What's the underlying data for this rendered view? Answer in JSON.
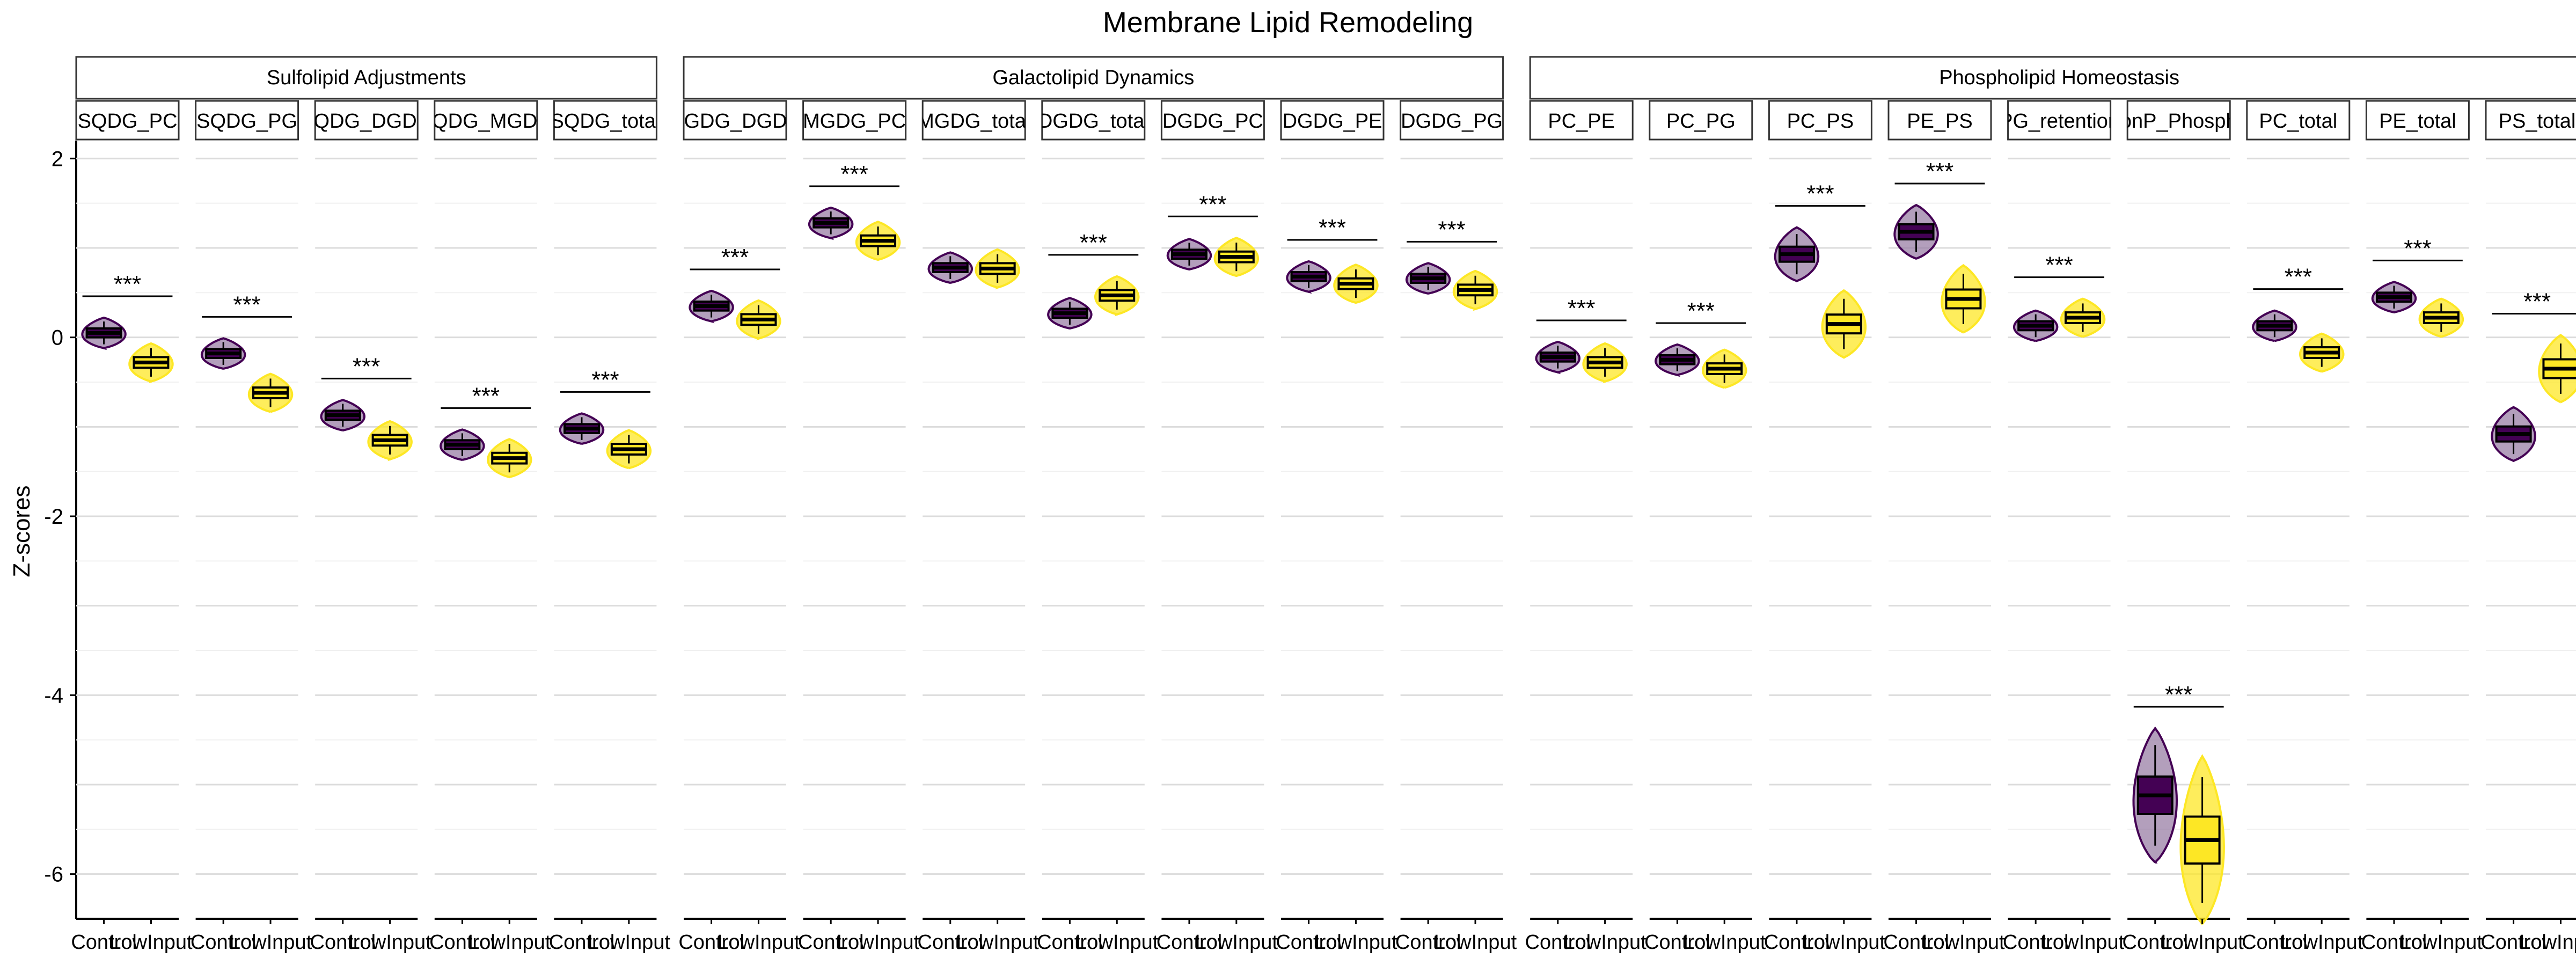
{
  "chart_data": {
    "type": "violin",
    "title": "Membrane Lipid Remodeling",
    "ylabel": "Z-scores",
    "xlabel": "",
    "ylim": [
      -6.5,
      2.2
    ],
    "yticks": [
      2,
      0,
      -2,
      -4,
      -6
    ],
    "ytick_labels": [
      "2",
      "0",
      "-2",
      "-4",
      "-6"
    ],
    "grid": true,
    "colors": {
      "Control": "#440154",
      "LowInput": "#FDE725"
    },
    "groups": [
      "Control",
      "LowInput"
    ],
    "group_tick_labels": [
      "Control",
      "LowInput"
    ],
    "facet_groups": [
      {
        "title": "Sulfolipid Adjustments",
        "start": 0,
        "count": 5
      },
      {
        "title": "Galactolipid Dynamics",
        "start": 5,
        "count": 7
      },
      {
        "title": "Phospholipid Homeostasis",
        "start": 12,
        "count": 9
      }
    ],
    "panels": [
      {
        "label": "SQDG_PC",
        "control_median": 0.05,
        "lowinput_median": -0.28,
        "significance": "***"
      },
      {
        "label": "SQDG_PG",
        "control_median": -0.18,
        "lowinput_median": -0.62,
        "significance": "***"
      },
      {
        "label": "SQDG_DGDG",
        "control_median": -0.87,
        "lowinput_median": -1.15,
        "significance": "***"
      },
      {
        "label": "SQDG_MGDG",
        "control_median": -1.2,
        "lowinput_median": -1.35,
        "significance": "***"
      },
      {
        "label": "SQDG_total",
        "control_median": -1.02,
        "lowinput_median": -1.25,
        "significance": "***"
      },
      {
        "label": "MGDG_DGDG",
        "control_median": 0.35,
        "lowinput_median": 0.2,
        "significance": "***"
      },
      {
        "label": "MGDG_PC",
        "control_median": 1.28,
        "lowinput_median": 1.08,
        "significance": "***"
      },
      {
        "label": "MGDG_total",
        "control_median": 0.78,
        "lowinput_median": 0.77,
        "significance": ""
      },
      {
        "label": "DGDG_total",
        "control_median": 0.27,
        "lowinput_median": 0.47,
        "significance": "***"
      },
      {
        "label": "DGDG_PC",
        "control_median": 0.93,
        "lowinput_median": 0.9,
        "significance": "***"
      },
      {
        "label": "DGDG_PE",
        "control_median": 0.68,
        "lowinput_median": 0.6,
        "significance": "***"
      },
      {
        "label": "DGDG_PG",
        "control_median": 0.66,
        "lowinput_median": 0.53,
        "significance": "***"
      },
      {
        "label": "PC_PE",
        "control_median": -0.22,
        "lowinput_median": -0.28,
        "significance": "***"
      },
      {
        "label": "PC_PG",
        "control_median": -0.25,
        "lowinput_median": -0.35,
        "significance": "***"
      },
      {
        "label": "PC_PS",
        "control_median": 0.93,
        "lowinput_median": 0.15,
        "significance": "***"
      },
      {
        "label": "PE_PS",
        "control_median": 1.18,
        "lowinput_median": 0.43,
        "significance": "***"
      },
      {
        "label": "PG_retention",
        "control_median": 0.13,
        "lowinput_median": 0.22,
        "significance": "***"
      },
      {
        "label": "nonP_Phospho",
        "control_median": -5.12,
        "lowinput_median": -5.62,
        "significance": "***"
      },
      {
        "label": "PC_total",
        "control_median": 0.13,
        "lowinput_median": -0.17,
        "significance": "***"
      },
      {
        "label": "PE_total",
        "control_median": 0.45,
        "lowinput_median": 0.22,
        "significance": "***"
      },
      {
        "label": "PS_total",
        "control_median": -1.08,
        "lowinput_median": -0.35,
        "significance": "***"
      }
    ]
  }
}
